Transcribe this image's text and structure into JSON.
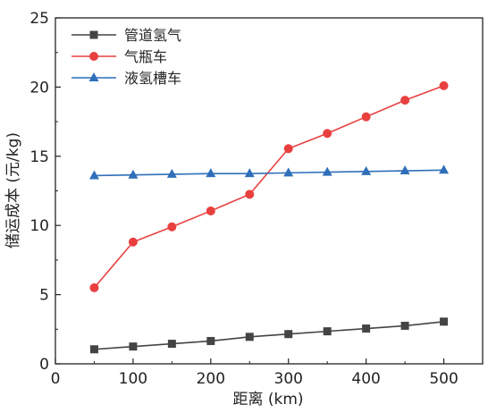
{
  "chart_data": {
    "type": "line",
    "title": "",
    "xlabel": "距离 (km)",
    "ylabel": "储运成本 (元/kg)",
    "xlim": [
      0,
      550
    ],
    "ylim": [
      0,
      25
    ],
    "x_ticks": [
      0,
      100,
      200,
      300,
      400,
      500
    ],
    "y_ticks": [
      0,
      5,
      10,
      15,
      20,
      25
    ],
    "grid": false,
    "legend_position": "top-left",
    "x": [
      50,
      100,
      150,
      200,
      250,
      300,
      350,
      400,
      450,
      500
    ],
    "series": [
      {
        "name": "管道氢气",
        "marker": "square",
        "color": "#444444",
        "values": [
          1.05,
          1.25,
          1.45,
          1.65,
          1.95,
          2.15,
          2.35,
          2.55,
          2.75,
          3.05
        ]
      },
      {
        "name": "气瓶车",
        "marker": "circle",
        "color": "#e8403f",
        "values": [
          5.5,
          8.8,
          9.9,
          11.05,
          12.25,
          15.55,
          16.65,
          17.85,
          19.05,
          20.1
        ]
      },
      {
        "name": "液氢槽车",
        "marker": "triangle",
        "color": "#2f6fba",
        "values": [
          13.6,
          13.65,
          13.7,
          13.75,
          13.75,
          13.8,
          13.85,
          13.9,
          13.95,
          14.0
        ]
      }
    ]
  }
}
